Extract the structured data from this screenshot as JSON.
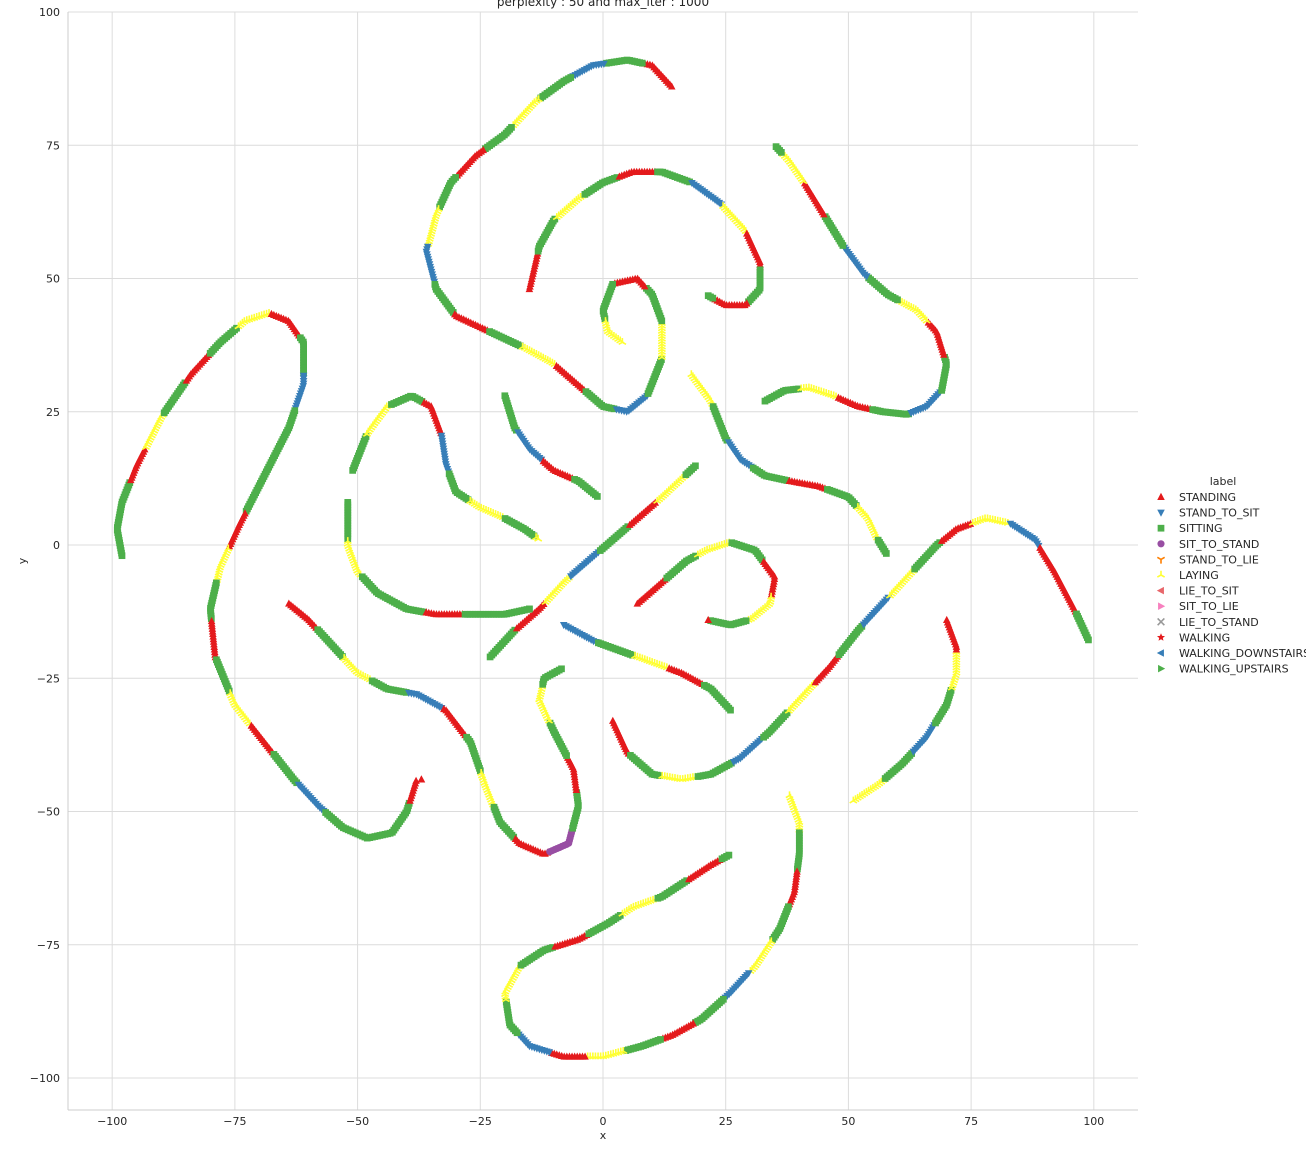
{
  "chart_data": {
    "type": "scatter",
    "title": "perplexity : 50 and max_iter : 1000",
    "xlabel": "x",
    "ylabel": "y",
    "xlim": [
      -109,
      109
    ],
    "ylim": [
      -106,
      100
    ],
    "xticks": [
      -100,
      -75,
      -50,
      -25,
      0,
      25,
      50,
      75,
      100
    ],
    "yticks": [
      -100,
      -75,
      -50,
      -25,
      0,
      25,
      50,
      75,
      100
    ],
    "xtick_labels": [
      "−100",
      "−75",
      "−50",
      "−25",
      "0",
      "25",
      "50",
      "75",
      "100"
    ],
    "ytick_labels": [
      "−100",
      "−75",
      "−50",
      "−25",
      "0",
      "25",
      "50",
      "75",
      "100"
    ],
    "grid": true,
    "legend_placement": "right",
    "legend": {
      "title": "label",
      "entries": [
        {
          "name": "STANDING",
          "color": "#e41a1c",
          "marker": "triangle-up"
        },
        {
          "name": "STAND_TO_SIT",
          "color": "#377eb8",
          "marker": "triangle-down"
        },
        {
          "name": "SITTING",
          "color": "#4daf4a",
          "marker": "square"
        },
        {
          "name": "SIT_TO_STAND",
          "color": "#984ea3",
          "marker": "circle"
        },
        {
          "name": "STAND_TO_LIE",
          "color": "#ff7f00",
          "marker": "tri-down"
        },
        {
          "name": "LAYING",
          "color": "#ffff33",
          "marker": "tri-up"
        },
        {
          "name": "LIE_TO_SIT",
          "color": "#e8666a",
          "marker": "triangle-left"
        },
        {
          "name": "SIT_TO_LIE",
          "color": "#f781bf",
          "marker": "triangle-right"
        },
        {
          "name": "LIE_TO_STAND",
          "color": "#999999",
          "marker": "x"
        },
        {
          "name": "WALKING",
          "color": "#e41a1c",
          "marker": "star"
        },
        {
          "name": "WALKING_DOWNSTAIRS",
          "color": "#377eb8",
          "marker": "triangle-left"
        },
        {
          "name": "WALKING_UPSTAIRS",
          "color": "#4daf4a",
          "marker": "triangle-right"
        }
      ]
    },
    "trajectories": [
      {
        "points": [
          [
            -98,
            -2
          ],
          [
            -99,
            3
          ],
          [
            -98,
            8
          ],
          [
            -95,
            15
          ],
          [
            -90,
            24
          ],
          [
            -84,
            32
          ],
          [
            -78,
            38
          ],
          [
            -73,
            42
          ],
          [
            -68,
            43.5
          ],
          [
            -64,
            42
          ],
          [
            -61,
            38
          ],
          [
            -61,
            30
          ],
          [
            -64,
            22
          ],
          [
            -69,
            13
          ],
          [
            -74,
            4
          ],
          [
            -78,
            -4
          ],
          [
            -80,
            -12
          ],
          [
            -79,
            -21
          ],
          [
            -75,
            -30
          ],
          [
            -69,
            -37
          ],
          [
            -63,
            -44
          ],
          [
            -58,
            -49
          ],
          [
            -53,
            -53
          ],
          [
            -48,
            -55
          ],
          [
            -43,
            -54
          ],
          [
            -40,
            -50
          ],
          [
            -38,
            -44
          ]
        ],
        "pattern": [
          2,
          2,
          0,
          5,
          2,
          0,
          2,
          5,
          0,
          2,
          1,
          2
        ]
      },
      {
        "points": [
          [
            -64,
            -11
          ],
          [
            -60,
            -14
          ],
          [
            -55,
            -19
          ],
          [
            -50,
            -24
          ],
          [
            -44,
            -27
          ],
          [
            -38,
            -28
          ],
          [
            -32,
            -31
          ],
          [
            -27,
            -37
          ],
          [
            -24,
            -45
          ],
          [
            -21,
            -52
          ],
          [
            -17,
            -56
          ],
          [
            -12,
            -58
          ],
          [
            -7,
            -56
          ],
          [
            -5,
            -49
          ],
          [
            -6,
            -42
          ],
          [
            -10,
            -35
          ],
          [
            -13,
            -29
          ],
          [
            -12,
            -25
          ],
          [
            -8,
            -23
          ]
        ],
        "pattern": [
          0,
          2,
          5,
          2,
          1,
          0,
          2,
          5,
          2,
          0,
          3,
          2
        ]
      },
      {
        "points": [
          [
            -37,
            -44
          ],
          [
            -37,
            -44
          ]
        ],
        "pattern": [
          0
        ]
      },
      {
        "points": [
          [
            -52,
            8
          ],
          [
            -52,
            0
          ],
          [
            -50,
            -5
          ],
          [
            -46,
            -9
          ],
          [
            -40,
            -12
          ],
          [
            -34,
            -13
          ],
          [
            -27,
            -13
          ],
          [
            -20,
            -13
          ],
          [
            -15,
            -12
          ]
        ],
        "pattern": [
          2,
          5,
          2,
          2,
          0,
          2
        ]
      },
      {
        "points": [
          [
            -51,
            14
          ],
          [
            -48,
            21
          ],
          [
            -44,
            26
          ],
          [
            -39,
            28
          ],
          [
            -35,
            26
          ],
          [
            -33,
            21
          ],
          [
            -32,
            15
          ],
          [
            -30,
            10
          ],
          [
            -25,
            7
          ],
          [
            -20,
            5
          ],
          [
            -16,
            3
          ],
          [
            -13,
            1
          ]
        ],
        "pattern": [
          2,
          5,
          2,
          0,
          1,
          2,
          5
        ]
      },
      {
        "points": [
          [
            -20,
            28
          ],
          [
            -18,
            22
          ],
          [
            -15,
            18
          ],
          [
            -10,
            14
          ],
          [
            -5,
            12
          ],
          [
            -1,
            9
          ]
        ],
        "pattern": [
          2,
          1,
          0,
          2,
          5,
          0
        ]
      },
      {
        "points": [
          [
            -23,
            -21
          ],
          [
            -18,
            -16
          ],
          [
            -13,
            -12
          ],
          [
            -8,
            -7
          ],
          [
            -3,
            -3
          ],
          [
            2,
            1
          ],
          [
            7,
            5
          ],
          [
            12,
            9
          ],
          [
            19,
            15
          ]
        ],
        "pattern": [
          2,
          0,
          5,
          1,
          2,
          0,
          5,
          2
        ]
      },
      {
        "points": [
          [
            -8,
            -15
          ],
          [
            -2,
            -18
          ],
          [
            4,
            -20
          ],
          [
            10,
            -22
          ],
          [
            16,
            -24
          ],
          [
            22,
            -27
          ],
          [
            26,
            -31
          ]
        ],
        "pattern": [
          1,
          2,
          5,
          0,
          2,
          5,
          0
        ]
      },
      {
        "points": [
          [
            2,
            -33
          ],
          [
            5,
            -39
          ],
          [
            10,
            -43
          ],
          [
            16,
            -44
          ],
          [
            22,
            -43
          ],
          [
            28,
            -40
          ],
          [
            34,
            -35
          ],
          [
            40,
            -29
          ],
          [
            46,
            -23
          ],
          [
            52,
            -16
          ],
          [
            58,
            -10
          ],
          [
            63,
            -5
          ],
          [
            68,
            0
          ],
          [
            72,
            3
          ],
          [
            78,
            5
          ],
          [
            83,
            4
          ],
          [
            88,
            1
          ],
          [
            92,
            -5
          ],
          [
            96,
            -12
          ],
          [
            99,
            -18
          ]
        ],
        "pattern": [
          0,
          2,
          5,
          2,
          1,
          2,
          5,
          0,
          2,
          1,
          5,
          2,
          0,
          5,
          1,
          0
        ]
      },
      {
        "points": [
          [
            7,
            -11
          ],
          [
            12,
            -7
          ],
          [
            17,
            -3
          ],
          [
            21,
            -1
          ],
          [
            26,
            0.5
          ],
          [
            31,
            -1
          ],
          [
            35,
            -6
          ],
          [
            34,
            -11
          ],
          [
            30,
            -14
          ],
          [
            26,
            -15
          ],
          [
            21,
            -14
          ]
        ],
        "pattern": [
          0,
          2,
          5,
          2,
          0,
          5,
          2
        ]
      },
      {
        "points": [
          [
            51,
            -48
          ],
          [
            56,
            -45
          ],
          [
            61,
            -41
          ],
          [
            66,
            -36
          ],
          [
            70,
            -30
          ],
          [
            72,
            -24
          ],
          [
            72,
            -19
          ],
          [
            70,
            -14
          ]
        ],
        "pattern": [
          5,
          2,
          1,
          2,
          5,
          0
        ]
      },
      {
        "points": [
          [
            38,
            -47
          ],
          [
            40,
            -52
          ],
          [
            40,
            -58
          ],
          [
            39,
            -65
          ],
          [
            36,
            -72
          ],
          [
            31,
            -79
          ],
          [
            26,
            -84
          ],
          [
            20,
            -89
          ],
          [
            14,
            -92
          ],
          [
            8,
            -94
          ],
          [
            0,
            -96
          ],
          [
            -8,
            -96
          ],
          [
            -15,
            -94
          ],
          [
            -19,
            -90
          ],
          [
            -20,
            -84
          ],
          [
            -17,
            -79
          ],
          [
            -12,
            -76
          ],
          [
            -5,
            -74
          ],
          [
            1,
            -71
          ],
          [
            6,
            -68
          ],
          [
            12,
            -66
          ],
          [
            17,
            -63
          ],
          [
            22,
            -60
          ],
          [
            26,
            -58
          ]
        ],
        "pattern": [
          5,
          2,
          0,
          2,
          5,
          1,
          2,
          0,
          2,
          5,
          0,
          1,
          2,
          5,
          2,
          0,
          2
        ]
      },
      {
        "points": [
          [
            -15,
            -12
          ],
          [
            -15,
            -12
          ]
        ],
        "pattern": [
          2
        ]
      },
      {
        "points": [
          [
            14,
            86
          ],
          [
            10,
            90
          ],
          [
            5,
            91
          ],
          [
            -2,
            90
          ],
          [
            -8,
            87
          ],
          [
            -14,
            83
          ],
          [
            -20,
            77
          ],
          [
            -26,
            73
          ],
          [
            -31,
            68
          ],
          [
            -34,
            62
          ],
          [
            -36,
            55
          ],
          [
            -34,
            48
          ],
          [
            -30,
            43
          ],
          [
            -23,
            40
          ],
          [
            -16,
            37
          ],
          [
            -10,
            34
          ],
          [
            -5,
            30
          ],
          [
            0,
            26
          ],
          [
            5,
            25
          ],
          [
            9,
            28
          ],
          [
            12,
            35
          ],
          [
            12,
            42
          ],
          [
            10,
            47
          ],
          [
            7,
            50
          ],
          [
            2,
            49
          ],
          [
            0,
            44
          ],
          [
            1,
            40
          ],
          [
            4,
            38
          ]
        ],
        "pattern": [
          0,
          2,
          1,
          2,
          5,
          2,
          0,
          2,
          5,
          1,
          2,
          0,
          2,
          5
        ]
      },
      {
        "points": [
          [
            -15,
            48
          ],
          [
            -13,
            56
          ],
          [
            -10,
            61
          ],
          [
            -5,
            65
          ],
          [
            0,
            68
          ],
          [
            6,
            70
          ],
          [
            12,
            70
          ],
          [
            18,
            68
          ],
          [
            24,
            64
          ],
          [
            29,
            59
          ],
          [
            32,
            53
          ],
          [
            32,
            48
          ],
          [
            29,
            45
          ],
          [
            25,
            45
          ],
          [
            21,
            47
          ]
        ],
        "pattern": [
          0,
          2,
          5,
          2,
          0,
          2,
          1,
          5,
          0,
          2
        ]
      },
      {
        "points": [
          [
            18,
            32
          ],
          [
            22,
            27
          ],
          [
            25,
            20
          ],
          [
            28,
            16
          ],
          [
            33,
            13
          ],
          [
            38,
            12
          ],
          [
            44,
            11
          ],
          [
            50,
            9
          ],
          [
            54,
            5
          ],
          [
            56,
            1
          ],
          [
            58,
            -2
          ]
        ],
        "pattern": [
          5,
          2,
          1,
          2,
          0,
          2,
          5,
          2,
          0
        ]
      },
      {
        "points": [
          [
            33,
            27
          ],
          [
            37,
            29
          ],
          [
            42,
            29.5
          ],
          [
            47,
            28
          ],
          [
            52,
            26
          ],
          [
            57,
            25
          ],
          [
            62,
            24.5
          ],
          [
            66,
            26
          ],
          [
            69,
            29
          ],
          [
            70,
            34
          ],
          [
            68,
            40
          ],
          [
            64,
            44
          ],
          [
            58,
            47
          ],
          [
            53,
            51
          ],
          [
            49,
            56
          ],
          [
            45,
            62
          ],
          [
            41,
            68
          ],
          [
            38,
            72
          ],
          [
            35,
            75
          ]
        ],
        "pattern": [
          2,
          5,
          0,
          2,
          1,
          2,
          0,
          5,
          2,
          1,
          2,
          0,
          5,
          2
        ]
      }
    ]
  }
}
